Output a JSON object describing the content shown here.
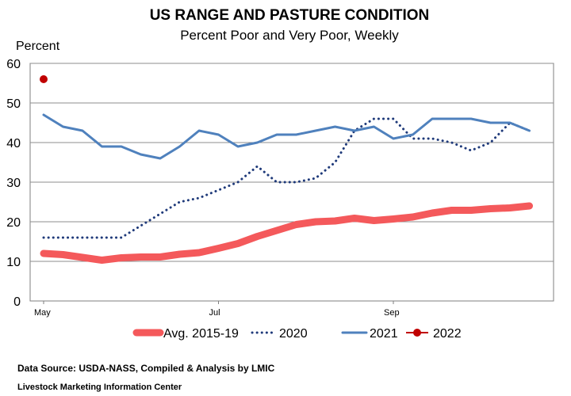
{
  "chart_data": {
    "type": "line",
    "title": "US RANGE AND PASTURE CONDITION",
    "subtitle": "Percent Poor and Very Poor, Weekly",
    "ylabel": "Percent",
    "ylim": [
      0,
      60
    ],
    "yticks": [
      0,
      10,
      20,
      30,
      40,
      50,
      60
    ],
    "xlim": [
      0,
      26
    ],
    "xticks": [
      {
        "label": "May",
        "week": 0
      },
      {
        "label": "Jul",
        "week": 9
      },
      {
        "label": "Sep",
        "week": 18
      }
    ],
    "grid": true,
    "legend_position": "bottom",
    "series": [
      {
        "name": "Avg. 2015-19",
        "color": "#f4595b",
        "style": "thick",
        "x": [
          0,
          1,
          2,
          3,
          4,
          5,
          6,
          7,
          8,
          9,
          10,
          11,
          12,
          13,
          14,
          15,
          16,
          17,
          18,
          19,
          20,
          21,
          22,
          23,
          24,
          25
        ],
        "values": [
          12,
          11.7,
          11,
          10.3,
          10.9,
          11.1,
          11.1,
          11.8,
          12.2,
          13.3,
          14.5,
          16.3,
          17.8,
          19.3,
          20,
          20.2,
          20.9,
          20.3,
          20.7,
          21.2,
          22.2,
          22.9,
          22.9,
          23.3,
          23.5,
          24
        ]
      },
      {
        "name": "2020",
        "color": "#1f3a7a",
        "style": "dotted",
        "x": [
          0,
          1,
          2,
          3,
          4,
          5,
          6,
          7,
          8,
          9,
          10,
          11,
          12,
          13,
          14,
          15,
          16,
          17,
          18,
          19,
          20,
          21,
          22,
          23,
          24,
          25
        ],
        "values": [
          16,
          16,
          16,
          16,
          16,
          19,
          22,
          25,
          26,
          28,
          30,
          34,
          30,
          30,
          31,
          35,
          43,
          46,
          46,
          41,
          41,
          40,
          38,
          40,
          45,
          43
        ]
      },
      {
        "name": "2021",
        "color": "#4f81bd",
        "style": "solid",
        "x": [
          0,
          1,
          2,
          3,
          4,
          5,
          6,
          7,
          8,
          9,
          10,
          11,
          12,
          13,
          14,
          15,
          16,
          17,
          18,
          19,
          20,
          21,
          22,
          23,
          24,
          25
        ],
        "values": [
          47,
          44,
          43,
          39,
          39,
          37,
          36,
          39,
          43,
          42,
          39,
          40,
          42,
          42,
          43,
          44,
          43,
          44,
          41,
          42,
          46,
          46,
          46,
          45,
          45,
          43
        ]
      },
      {
        "name": "2022",
        "color": "#c00000",
        "style": "marker",
        "x": [
          0
        ],
        "values": [
          56
        ]
      }
    ]
  },
  "footer": {
    "source": "Data Source:  USDA-NASS, Compiled & Analysis by LMIC",
    "org": "Livestock Marketing Information Center"
  }
}
